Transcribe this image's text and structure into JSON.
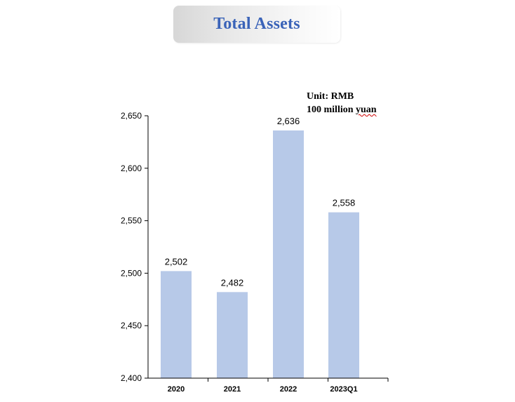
{
  "title": "Total Assets",
  "unit_note": {
    "line1": "Unit: RMB",
    "line2_prefix": "100 million ",
    "line2_word": "yuan"
  },
  "colors": {
    "bar": "#b7c9e8",
    "title": "#3a63b8",
    "axis": "#000000"
  },
  "chart_data": {
    "type": "bar",
    "categories": [
      "2020",
      "2021",
      "2022",
      "2023Q1"
    ],
    "values": [
      2502,
      2482,
      2636,
      2558
    ],
    "value_labels": [
      "2,502",
      "2,482",
      "2,636",
      "2,558"
    ],
    "ylim": [
      2400,
      2650
    ],
    "yticks": [
      2400,
      2450,
      2500,
      2550,
      2600,
      2650
    ],
    "ytick_labels": [
      "2,400",
      "2,450",
      "2,500",
      "2,550",
      "2,600",
      "2,650"
    ],
    "title": "Total Assets",
    "xlabel": "",
    "ylabel": "",
    "grid": false,
    "legend": "none"
  }
}
